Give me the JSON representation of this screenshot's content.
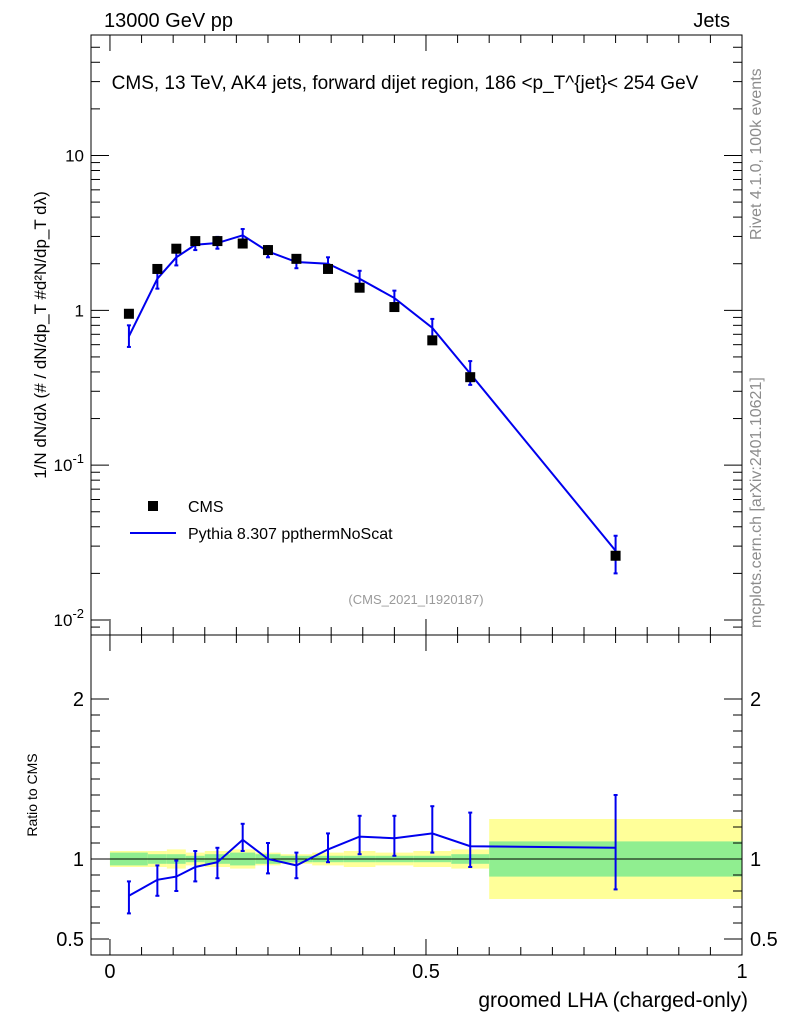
{
  "header": {
    "left": "13000 GeV pp",
    "right": "Jets",
    "side_top": "Rivet 4.1.0,  100k events",
    "side_bottom": "mcplots.cern.ch [arXiv:2401.10621]"
  },
  "chart_data": [
    {
      "type": "scatter",
      "panel": "main",
      "title": "CMS, 13 TeV, AK4 jets, forward dijet region, 186 <p_T^{jet}< 254 GeV",
      "ylabel": "1/N dN/dλ (# / dN/dp_T  #d²N/dp_T dλ)",
      "yscale": "log",
      "ylim": [
        0.008,
        60
      ],
      "xlim": [
        -0.03,
        1.0
      ],
      "yticks": [
        0.01,
        0.1,
        1,
        10
      ],
      "ytick_labels": [
        "10^{-2}",
        "10^{-1}",
        "1",
        "10"
      ],
      "watermark": "(CMS_2021_I1920187)",
      "legend": {
        "placement": "bottom-left",
        "entries": [
          "CMS",
          "Pythia 8.307 ppthermNoScat"
        ]
      },
      "series": [
        {
          "name": "CMS",
          "style": "markers",
          "color": "#000000",
          "x": [
            0.03,
            0.075,
            0.105,
            0.135,
            0.17,
            0.21,
            0.25,
            0.295,
            0.345,
            0.395,
            0.45,
            0.51,
            0.57,
            0.8
          ],
          "y": [
            0.95,
            1.85,
            2.5,
            2.8,
            2.8,
            2.7,
            2.45,
            2.15,
            1.85,
            1.4,
            1.05,
            0.64,
            0.37,
            0.026
          ]
        },
        {
          "name": "Pythia 8.307 ppthermNoScat",
          "style": "line",
          "color": "#0000ee",
          "x": [
            0.03,
            0.075,
            0.105,
            0.135,
            0.17,
            0.21,
            0.25,
            0.295,
            0.345,
            0.395,
            0.45,
            0.51,
            0.57,
            0.8
          ],
          "y": [
            0.68,
            1.6,
            2.2,
            2.65,
            2.72,
            3.05,
            2.4,
            2.05,
            2.0,
            1.6,
            1.2,
            0.77,
            0.39,
            0.028
          ],
          "err_lo": [
            0.58,
            1.38,
            1.95,
            2.45,
            2.5,
            2.8,
            2.2,
            1.87,
            1.8,
            1.42,
            1.07,
            0.67,
            0.33,
            0.02
          ],
          "err_hi": [
            0.8,
            1.85,
            2.45,
            2.9,
            2.98,
            3.35,
            2.6,
            2.25,
            2.2,
            1.8,
            1.34,
            0.88,
            0.47,
            0.035
          ]
        }
      ]
    },
    {
      "type": "line",
      "panel": "ratio",
      "ylabel": "Ratio to CMS",
      "xlabel": "groomed LHA (charged-only)",
      "ylim": [
        0.4,
        2.4
      ],
      "yticks": [
        0.5,
        1,
        2
      ],
      "ytick_labels": [
        "0.5",
        "1",
        "2"
      ],
      "xticks": [
        0,
        0.5,
        1
      ],
      "xtick_labels": [
        "0",
        "0.5",
        "1"
      ],
      "bins": [
        0,
        0.06,
        0.09,
        0.12,
        0.15,
        0.19,
        0.23,
        0.27,
        0.32,
        0.37,
        0.42,
        0.48,
        0.54,
        0.6,
        1.0
      ],
      "band_inner": [
        0.04,
        0.03,
        0.03,
        0.02,
        0.03,
        0.04,
        0.03,
        0.02,
        0.02,
        0.02,
        0.02,
        0.02,
        0.03,
        0.11
      ],
      "band_outer": [
        0.05,
        0.05,
        0.06,
        0.04,
        0.05,
        0.06,
        0.04,
        0.03,
        0.04,
        0.05,
        0.04,
        0.05,
        0.06,
        0.25
      ],
      "series": [
        {
          "name": "Pythia 8.307 ppthermNoScat",
          "color": "#0000ee",
          "x": [
            0.03,
            0.075,
            0.105,
            0.135,
            0.17,
            0.21,
            0.25,
            0.295,
            0.345,
            0.395,
            0.45,
            0.51,
            0.57,
            0.8
          ],
          "y": [
            0.77,
            0.87,
            0.89,
            0.95,
            0.98,
            1.12,
            1.0,
            0.96,
            1.06,
            1.14,
            1.13,
            1.16,
            1.08,
            1.07
          ],
          "err_lo": [
            0.66,
            0.77,
            0.8,
            0.86,
            0.88,
            1.05,
            0.91,
            0.88,
            0.98,
            1.03,
            1.02,
            1.04,
            0.95,
            0.81
          ],
          "err_hi": [
            0.86,
            0.96,
            0.99,
            1.05,
            1.07,
            1.22,
            1.1,
            1.04,
            1.16,
            1.27,
            1.27,
            1.33,
            1.29,
            1.4
          ]
        }
      ]
    }
  ]
}
